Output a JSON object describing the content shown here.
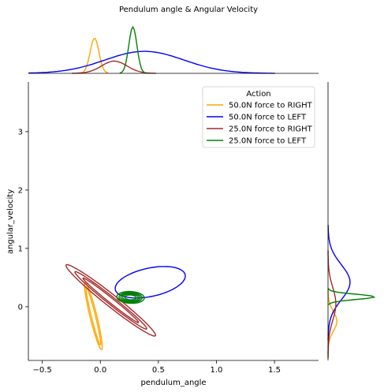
{
  "chart_data": {
    "type": "jointplot-kde",
    "title": "Pendulum angle & Angular Velocity",
    "xlabel": "pendulum_angle",
    "ylabel": "angular_velocity",
    "xlim": [
      -0.62,
      1.88
    ],
    "ylim": [
      -0.92,
      3.85
    ],
    "xticks": [
      -0.5,
      0.0,
      0.5,
      1.0,
      1.5
    ],
    "yticks": [
      0,
      1,
      2,
      3
    ],
    "xtick_labels": [
      "−0.5",
      "0.0",
      "0.5",
      "1.0",
      "1.5"
    ],
    "ytick_labels": [
      "0",
      "1",
      "2",
      "3"
    ],
    "grid": false,
    "legend": {
      "title": "Action",
      "placement": "top-right",
      "entries": [
        "50.0N force to RIGHT",
        "50.0N force to LEFT",
        "25.0N force to RIGHT",
        "25.0N force to LEFT"
      ]
    },
    "series": [
      {
        "name": "50.0N force to RIGHT",
        "color": "#FFA500",
        "contours": [
          {
            "center": [
              -0.06,
              -0.16
            ],
            "semi_axes": [
              0.58,
              0.03
            ],
            "angle_deg": -83
          },
          {
            "center": [
              -0.06,
              -0.16
            ],
            "semi_axes": [
              0.5,
              0.018
            ],
            "angle_deg": -83
          }
        ],
        "x_marginal": {
          "peak_x": -0.05,
          "spread": 0.038,
          "peak_height": 0.72
        },
        "y_marginal": {
          "peak_y": -0.25,
          "spread": 0.17,
          "peak_height": 0.18
        }
      },
      {
        "name": "50.0N force to LEFT",
        "color": "#0000FF",
        "contours": [
          {
            "center": [
              0.43,
              0.42
            ],
            "semi_axes": [
              0.34,
              0.22
            ],
            "angle_deg": 37
          }
        ],
        "x_marginal": {
          "peak_x": 0.38,
          "spread": 0.34,
          "peak_height": 0.45
        },
        "y_marginal": {
          "peak_y": 0.42,
          "spread": 0.3,
          "peak_height": 0.45
        }
      },
      {
        "name": "25.0N force to RIGHT",
        "color": "#A52A2A",
        "contours": [
          {
            "center": [
              0.09,
              0.11
            ],
            "semi_axes": [
              0.72,
              0.07
            ],
            "angle_deg": -58
          },
          {
            "center": [
              0.09,
              0.11
            ],
            "semi_axes": [
              0.58,
              0.045
            ],
            "angle_deg": -58
          },
          {
            "center": [
              0.09,
              0.11
            ],
            "semi_axes": [
              0.45,
              0.028
            ],
            "angle_deg": -58
          }
        ],
        "x_marginal": {
          "peak_x": 0.12,
          "spread": 0.11,
          "peak_height": 0.25
        },
        "y_marginal": {
          "peak_y": 0.05,
          "spread": 0.28,
          "peak_height": 0.16
        }
      },
      {
        "name": "25.0N force to LEFT",
        "color": "#008000",
        "contours": [
          {
            "center": [
              0.26,
              0.16
            ],
            "semi_axes": [
              0.12,
              0.1
            ],
            "angle_deg": -15
          },
          {
            "center": [
              0.26,
              0.16
            ],
            "semi_axes": [
              0.1,
              0.085
            ],
            "angle_deg": -15
          },
          {
            "center": [
              0.26,
              0.16
            ],
            "semi_axes": [
              0.085,
              0.07
            ],
            "angle_deg": -15
          },
          {
            "center": [
              0.26,
              0.16
            ],
            "semi_axes": [
              0.07,
              0.055
            ],
            "angle_deg": -15
          },
          {
            "center": [
              0.26,
              0.16
            ],
            "semi_axes": [
              0.05,
              0.04
            ],
            "angle_deg": -15
          }
        ],
        "x_marginal": {
          "peak_x": 0.28,
          "spread": 0.035,
          "peak_height": 0.95
        },
        "y_marginal": {
          "peak_y": 0.17,
          "spread": 0.045,
          "peak_height": 0.95
        }
      }
    ]
  }
}
